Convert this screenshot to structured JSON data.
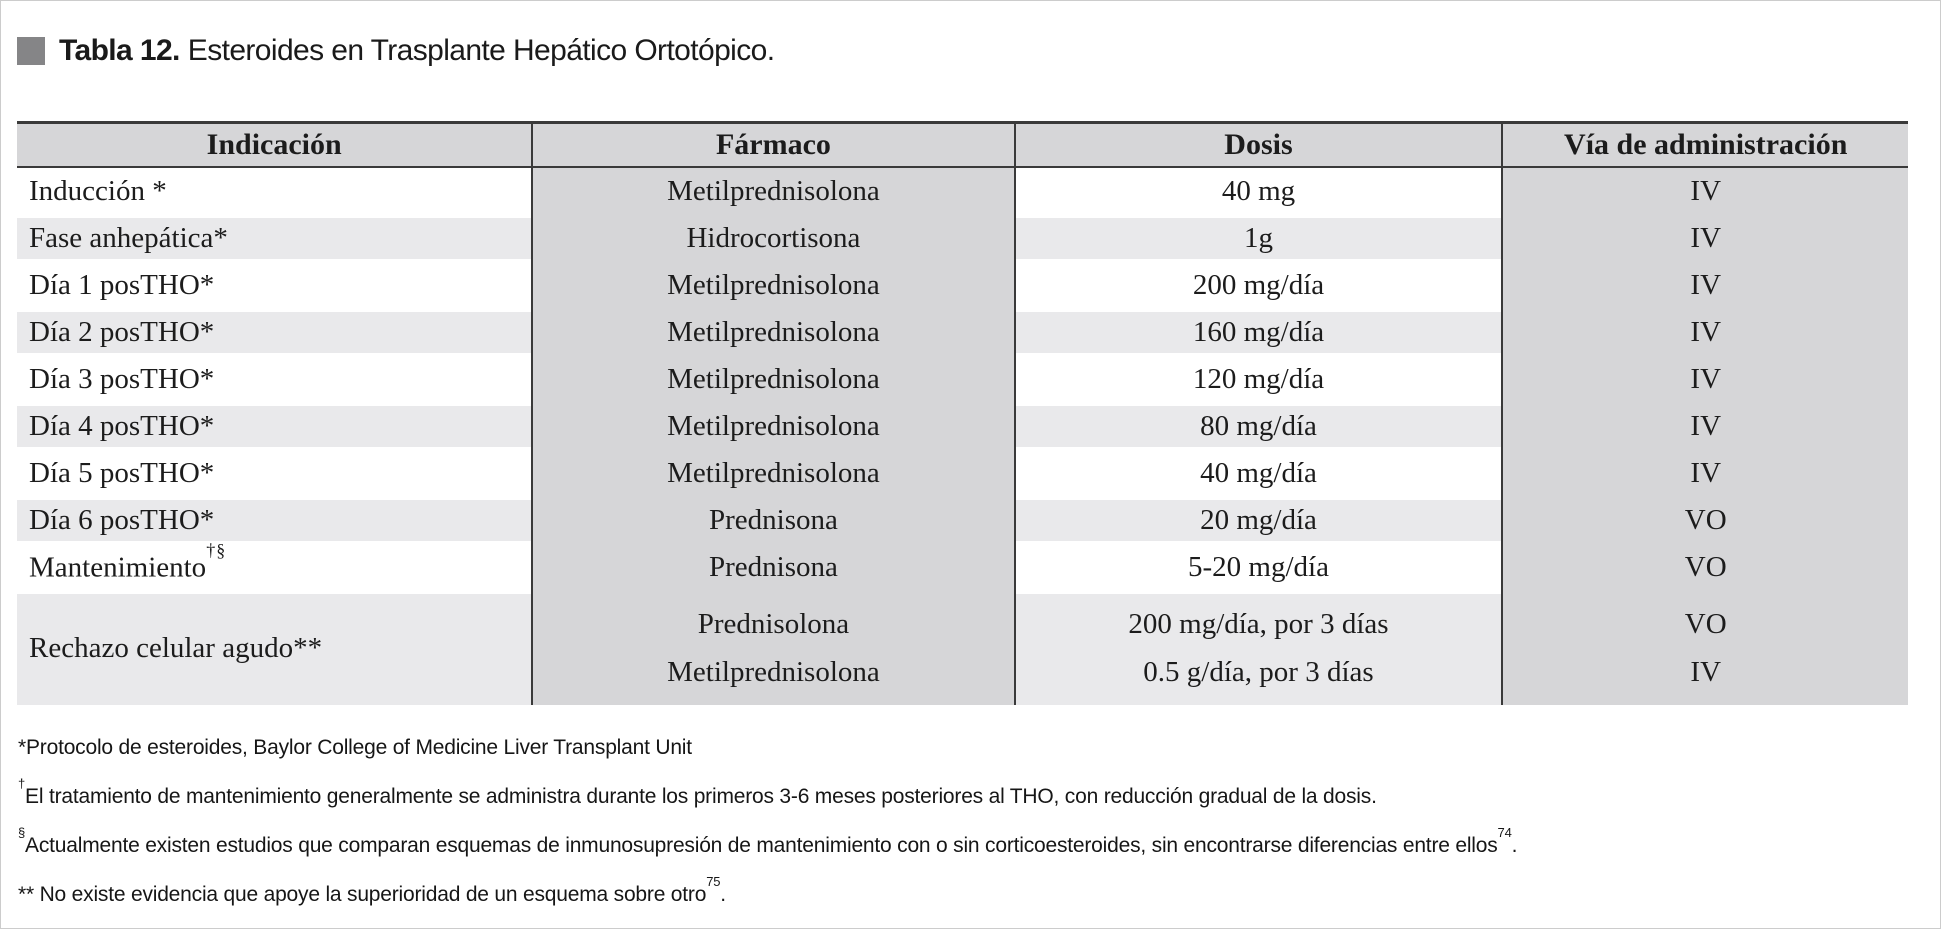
{
  "title": {
    "label": "Tabla 12.",
    "text": "Esteroides en Trasplante Hepático Ortotópico."
  },
  "table": {
    "columns": [
      "Indicación",
      "Fármaco",
      "Dosis",
      "Vía de administración"
    ],
    "rows": [
      {
        "indicacion": "Inducción *",
        "farmaco": "Metilprednisolona",
        "dosis": "40 mg",
        "via": "IV"
      },
      {
        "indicacion": "Fase anhepática*",
        "farmaco": "Hidrocortisona",
        "dosis": "1g",
        "via": "IV"
      },
      {
        "indicacion": "Día 1 posTHO*",
        "farmaco": "Metilprednisolona",
        "dosis": "200 mg/día",
        "via": "IV"
      },
      {
        "indicacion": "Día 2 posTHO*",
        "farmaco": "Metilprednisolona",
        "dosis": "160 mg/día",
        "via": "IV"
      },
      {
        "indicacion": "Día 3 posTHO*",
        "farmaco": "Metilprednisolona",
        "dosis": "120 mg/día",
        "via": "IV"
      },
      {
        "indicacion": "Día 4 posTHO*",
        "farmaco": "Metilprednisolona",
        "dosis": "80 mg/día",
        "via": "IV"
      },
      {
        "indicacion": "Día 5 posTHO*",
        "farmaco": "Metilprednisolona",
        "dosis": "40 mg/día",
        "via": "IV"
      },
      {
        "indicacion": "Día 6 posTHO*",
        "farmaco": "Prednisona",
        "dosis": "20 mg/día",
        "via": "VO"
      },
      {
        "indicacion": "Mantenimiento",
        "indicacion_sup": "†§",
        "farmaco": "Prednisona",
        "dosis": "5-20 mg/día",
        "via": "VO"
      },
      {
        "indicacion": "Rechazo celular agudo**",
        "farmaco_line1": "Prednisolona",
        "farmaco_line2": "Metilprednisolona",
        "dosis_line1": "200 mg/día, por 3 días",
        "dosis_line2": "0.5 g/día, por 3 días",
        "via_line1": "VO",
        "via_line2": "IV"
      }
    ],
    "footnotes": [
      {
        "marker_sup": "",
        "marker": "*",
        "text": "Protocolo de esteroides, Baylor College of Medicine Liver Transplant Unit",
        "ref": "",
        "tail": ""
      },
      {
        "marker_sup": "†",
        "marker": "",
        "text": "El tratamiento de mantenimiento generalmente se administra durante los primeros 3-6 meses posteriores al THO, con reducción gradual de la dosis.",
        "ref": "",
        "tail": ""
      },
      {
        "marker_sup": "§",
        "marker": "",
        "text": "Actualmente existen estudios que comparan esquemas de inmunosupresión de mantenimiento con o sin corticoesteroides, sin encontrarse diferencias entre ellos",
        "ref": "74",
        "tail": "."
      },
      {
        "marker_sup": "",
        "marker": "**",
        "text": " No existe evidencia que apoye la superioridad de un esquema sobre otro",
        "ref": "75",
        "tail": "."
      }
    ]
  },
  "colors": {
    "column_gray": "#d6d6d8",
    "stripe_gray": "#e9e9eb",
    "border_dark": "#3a3a3a",
    "title_square": "#858587",
    "background": "#ffffff"
  }
}
